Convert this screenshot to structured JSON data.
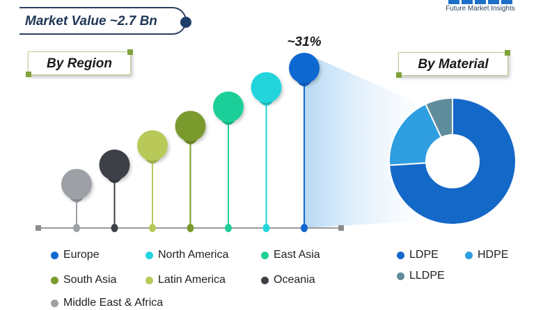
{
  "market_value_label": "Market Value ~2.7 Bn",
  "brand_name": "Future Market Insights",
  "by_region_label": "By Region",
  "by_material_label": "By Material",
  "chart_data": [
    {
      "type": "bar",
      "title": "By Region",
      "categories": [
        "Middle East & Africa",
        "Oceania",
        "Latin America",
        "South Asia",
        "East Asia",
        "North America",
        "Europe"
      ],
      "values": [
        2,
        3,
        4,
        5,
        6,
        7,
        8
      ],
      "colors": [
        "#9da1a6",
        "#3d4147",
        "#b8c95a",
        "#7a9a2d",
        "#1fcf98",
        "#22d5dc",
        "#1167d0"
      ],
      "highlight": {
        "category": "Europe",
        "label": "~31%"
      },
      "notes": "Lollipop markers rising left to right; relative heights are illustrative, no axis scale printed."
    },
    {
      "type": "pie",
      "title": "By Material",
      "donut": true,
      "labels": [
        "LDPE",
        "HDPE",
        "LLDPE"
      ],
      "values": [
        74,
        19,
        7
      ],
      "colors": [
        "#1468c8",
        "#2e9ee0",
        "#5f8c9b"
      ]
    }
  ],
  "region_legend": [
    {
      "label": "Europe",
      "color": "#1167d0"
    },
    {
      "label": "North America",
      "color": "#22d5dc"
    },
    {
      "label": "East Asia",
      "color": "#1fcf98"
    },
    {
      "label": "South Asia",
      "color": "#7a9a2d"
    },
    {
      "label": "Latin America",
      "color": "#b8c95a"
    },
    {
      "label": "Oceania",
      "color": "#3d4147"
    },
    {
      "label": "Middle East & Africa",
      "color": "#9da1a6"
    }
  ],
  "material_legend": [
    {
      "label": "LDPE",
      "color": "#1468c8"
    },
    {
      "label": "HDPE",
      "color": "#2e9ee0"
    },
    {
      "label": "LLDPE",
      "color": "#5f8c9b"
    }
  ]
}
